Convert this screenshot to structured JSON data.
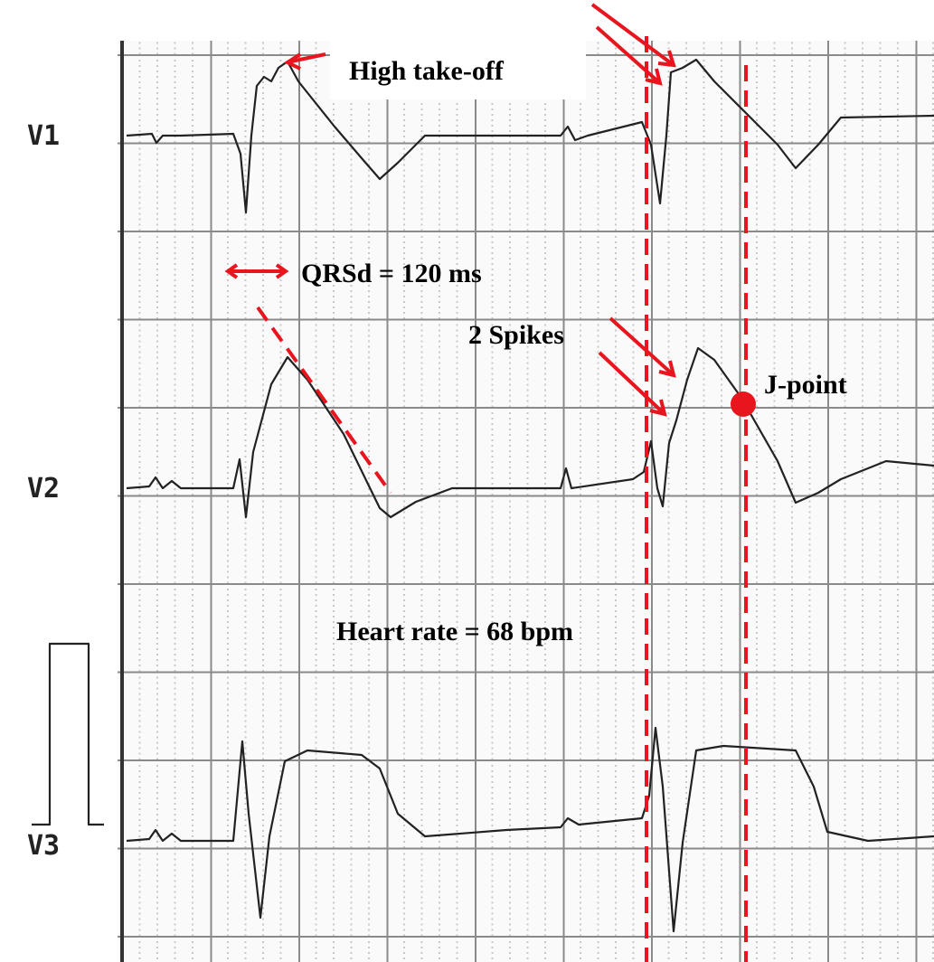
{
  "leads": [
    "V1",
    "V2",
    "V3"
  ],
  "annotations": {
    "high_take_off": "High take-off",
    "qrsd": "QRSd = 120 ms",
    "spikes": "2 Spikes",
    "j_point": "J-point",
    "heart_rate": "Heart rate = 68 bpm"
  }
}
